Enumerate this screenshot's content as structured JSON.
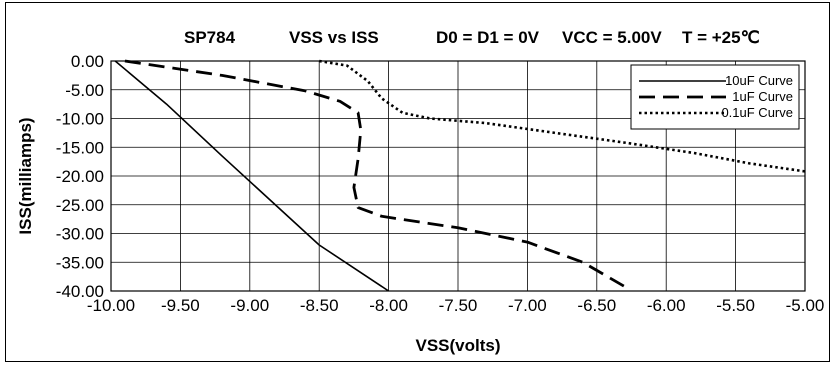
{
  "chart_data": {
    "type": "line",
    "title_parts": [
      "SP784",
      "VSS vs ISS",
      "D0 = D1 = 0V",
      "VCC = 5.00V",
      "T = +25℃"
    ],
    "xlabel": "VSS(volts)",
    "ylabel": "ISS(milliamps)",
    "xlim": [
      -10.0,
      -5.0
    ],
    "ylim": [
      -40.0,
      0.0
    ],
    "x_ticks": [
      "-10.00",
      "-9.50",
      "-9.00",
      "-8.50",
      "-8.00",
      "-7.50",
      "-7.00",
      "-6.50",
      "-6.00",
      "-5.50",
      "-5.00"
    ],
    "y_ticks": [
      "0.00",
      "-5.00",
      "-10.00",
      "-15.00",
      "-20.00",
      "-25.00",
      "-30.00",
      "-35.00",
      "-40.00"
    ],
    "grid": true,
    "legend_position": "top-right",
    "series": [
      {
        "name": "10uF Curve",
        "style": "solid",
        "points": [
          [
            -9.97,
            0.0
          ],
          [
            -9.6,
            -7.5
          ],
          [
            -9.2,
            -16.5
          ],
          [
            -8.5,
            -32.0
          ],
          [
            -8.0,
            -40.0
          ]
        ]
      },
      {
        "name": "1uF Curve",
        "style": "dashed",
        "points": [
          [
            -9.9,
            0.0
          ],
          [
            -9.2,
            -2.5
          ],
          [
            -8.6,
            -5.2
          ],
          [
            -8.35,
            -7.0
          ],
          [
            -8.22,
            -9.0
          ],
          [
            -8.2,
            -12.0
          ],
          [
            -8.22,
            -17.0
          ],
          [
            -8.25,
            -22.0
          ],
          [
            -8.22,
            -25.5
          ],
          [
            -8.05,
            -27.0
          ],
          [
            -7.5,
            -29.0
          ],
          [
            -7.0,
            -31.5
          ],
          [
            -6.6,
            -35.0
          ],
          [
            -6.28,
            -39.5
          ]
        ]
      },
      {
        "name": "0.1uF Curve",
        "style": "dotted",
        "points": [
          [
            -8.5,
            0.0
          ],
          [
            -8.3,
            -0.8
          ],
          [
            -8.15,
            -3.5
          ],
          [
            -8.05,
            -6.5
          ],
          [
            -7.9,
            -9.0
          ],
          [
            -7.7,
            -10.0
          ],
          [
            -7.3,
            -10.8
          ],
          [
            -6.8,
            -12.5
          ],
          [
            -6.3,
            -14.2
          ],
          [
            -5.8,
            -16.0
          ],
          [
            -5.4,
            -17.8
          ],
          [
            -5.0,
            -19.2
          ]
        ]
      }
    ]
  }
}
